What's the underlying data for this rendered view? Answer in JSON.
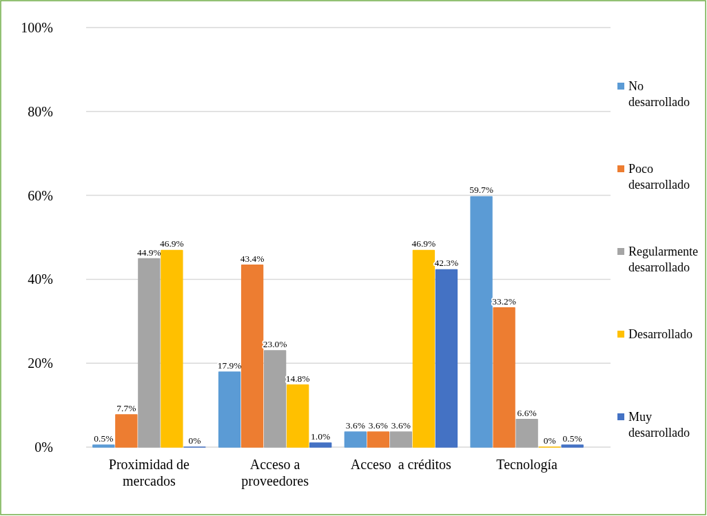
{
  "chart_data": {
    "type": "bar",
    "categories": [
      "Proximidad de mercados",
      "Acceso a proveedores",
      "Acceso  a créditos",
      "Tecnología"
    ],
    "series": [
      {
        "name": "No desarrollado",
        "color": "#5b9bd5",
        "values": [
          0.5,
          17.9,
          3.6,
          59.7
        ],
        "value_labels": [
          "0.5%",
          "17.9%",
          "3.6%",
          "59.7%"
        ]
      },
      {
        "name": "Poco desarrollado",
        "color": "#ed7d31",
        "values": [
          7.7,
          43.4,
          3.6,
          33.2
        ],
        "value_labels": [
          "7.7%",
          "43.4%",
          "3.6%",
          "33.2%"
        ]
      },
      {
        "name": "Regularmente desarrollado",
        "color": "#a5a5a5",
        "values": [
          44.9,
          23.0,
          3.6,
          6.6
        ],
        "value_labels": [
          "44.9%",
          "23.0%",
          "3.6%",
          "6.6%"
        ]
      },
      {
        "name": "Desarrollado",
        "color": "#ffc000",
        "values": [
          46.9,
          14.8,
          46.9,
          0
        ],
        "value_labels": [
          "46.9%",
          "14.8%",
          "46.9%",
          "0%"
        ]
      },
      {
        "name": "Muy desarrollado",
        "color": "#4472c4",
        "values": [
          0,
          1.0,
          42.3,
          0.5
        ],
        "value_labels": [
          "0%",
          "1.0%",
          "42.3%",
          "0.5%"
        ]
      }
    ],
    "ylim": [
      0,
      100
    ],
    "yticks": [
      {
        "value": 0,
        "label": "0%"
      },
      {
        "value": 20,
        "label": "20%"
      },
      {
        "value": 40,
        "label": "40%"
      },
      {
        "value": 60,
        "label": "60%"
      },
      {
        "value": 80,
        "label": "80%"
      },
      {
        "value": 100,
        "label": "100%"
      }
    ],
    "grid": "y",
    "legend": "right"
  }
}
